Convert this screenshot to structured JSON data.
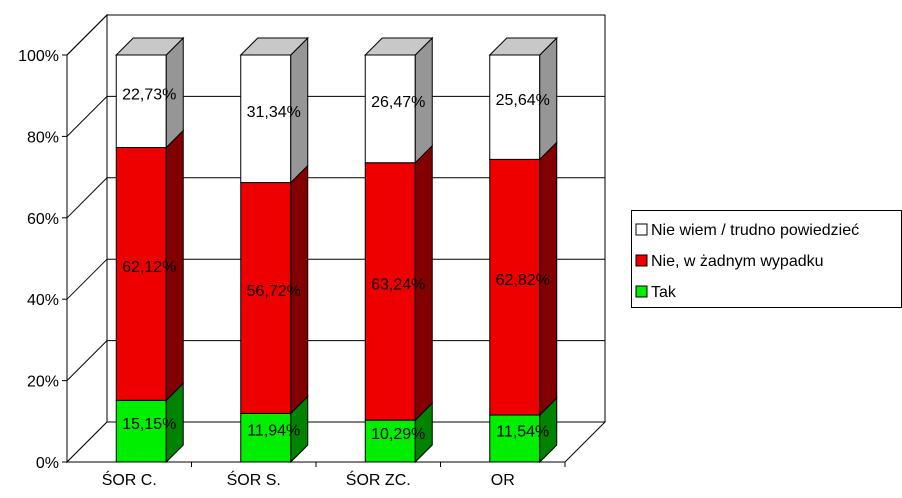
{
  "chart_data": {
    "type": "bar",
    "stacked": "percent",
    "three_d": true,
    "categories": [
      "ŚOR C.",
      "ŚOR S.",
      "ŚOR ZC.",
      "OR"
    ],
    "series": [
      {
        "name": "Tak",
        "color": "#00ee00",
        "values": [
          15.15,
          11.94,
          10.29,
          11.54
        ],
        "labels": [
          "15,15%",
          "11,94%",
          "10,29%",
          "11,54%"
        ]
      },
      {
        "name": "Nie, w żadnym wypadku",
        "color": "#ee0000",
        "values": [
          62.12,
          56.72,
          63.24,
          62.82
        ],
        "labels": [
          "62,12%",
          "56,72%",
          "63,24%",
          "62,82%"
        ]
      },
      {
        "name": "Nie wiem / trudno powiedzieć",
        "color": "#ffffff",
        "values": [
          22.73,
          31.34,
          26.47,
          25.64
        ],
        "labels": [
          "22,73%",
          "31,34%",
          "26,47%",
          "25,64%"
        ]
      }
    ],
    "y_ticks": [
      "0%",
      "20%",
      "40%",
      "60%",
      "80%",
      "100%"
    ],
    "ylim": [
      0,
      100
    ],
    "grid": true,
    "legend": {
      "position": "right",
      "entries": [
        "Nie wiem / trudno powiedzieć",
        "Nie, w żadnym wypadku",
        "Tak"
      ]
    }
  }
}
